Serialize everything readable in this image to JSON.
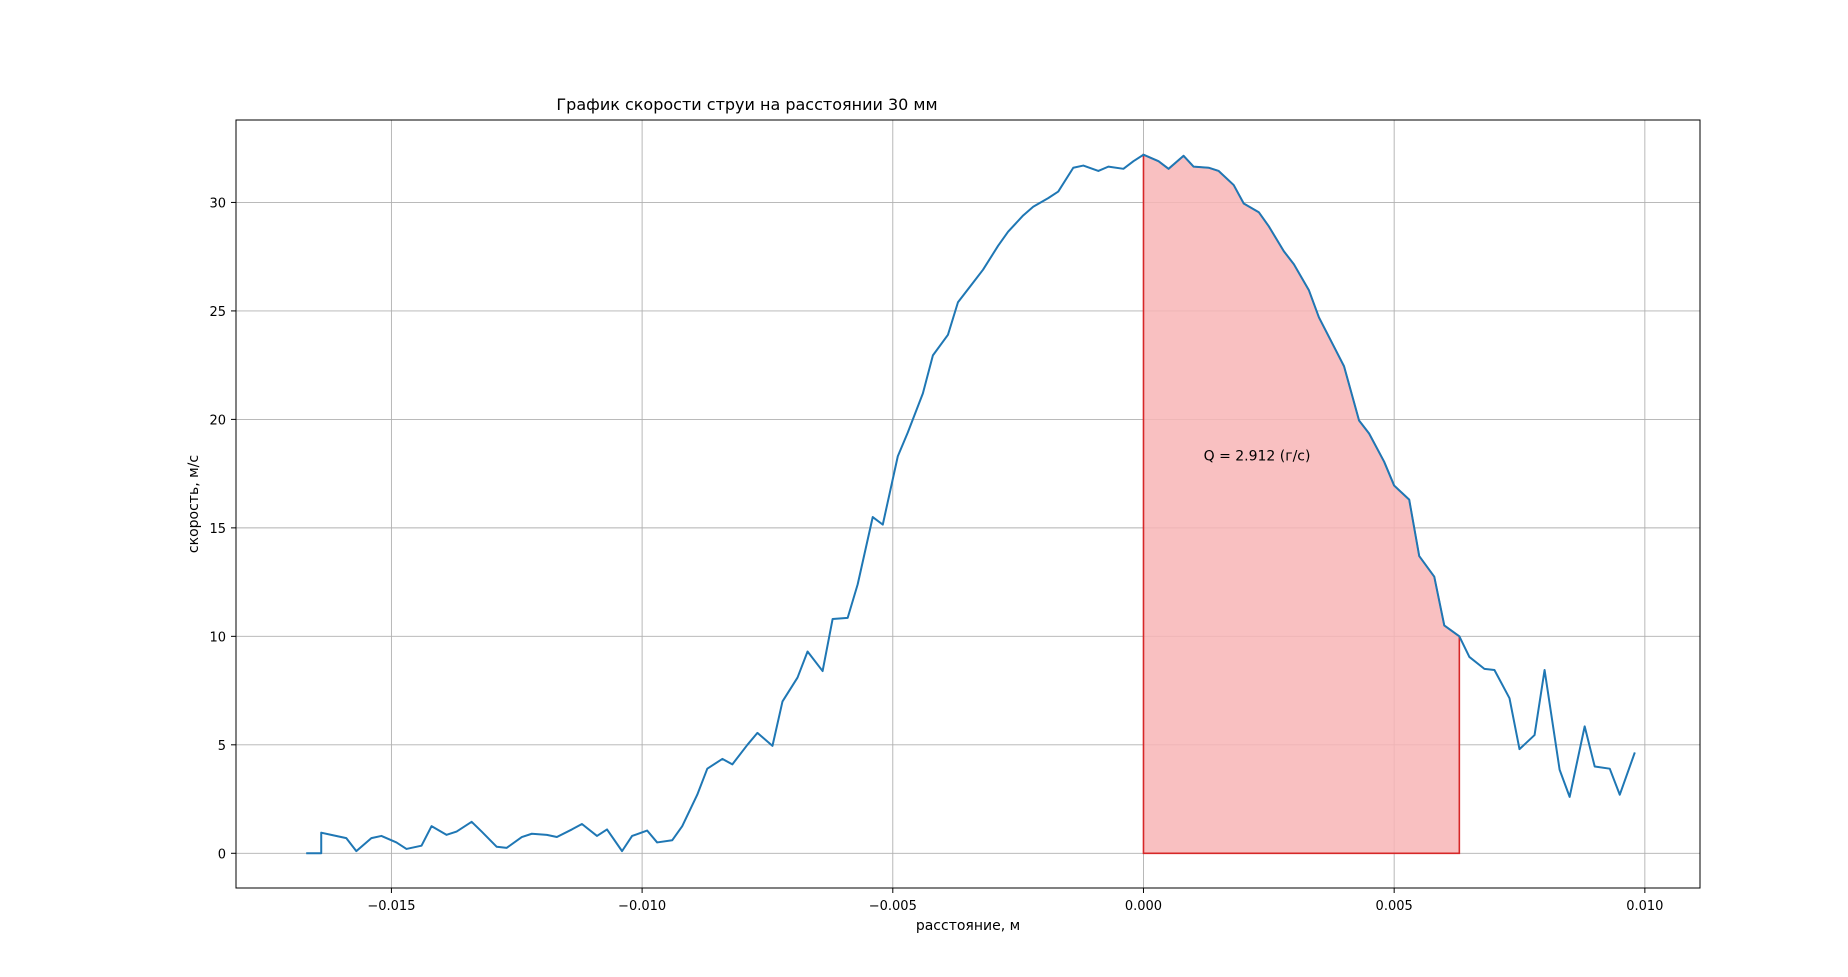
{
  "chart_data": {
    "type": "line",
    "title": "График скорости струи на расстоянии 30 мм",
    "xlabel": "расстояние, м",
    "ylabel": "скорость, м/с",
    "xlim": [
      -0.0181,
      0.0111
    ],
    "ylim": [
      -1.6,
      33.8
    ],
    "xticks": [
      -0.015,
      -0.01,
      -0.005,
      0.0,
      0.005,
      0.01
    ],
    "xtick_labels": [
      "−0.015",
      "−0.010",
      "−0.005",
      "0.000",
      "0.005",
      "0.010"
    ],
    "yticks": [
      0,
      5,
      10,
      15,
      20,
      25,
      30
    ],
    "ytick_labels": [
      "0",
      "5",
      "10",
      "15",
      "20",
      "25",
      "30"
    ],
    "grid": true,
    "series": [
      {
        "color": "#1f77b4",
        "x": [
          -0.0167,
          -0.0164,
          -0.0164,
          -0.0162,
          -0.0159,
          -0.0157,
          -0.0154,
          -0.0152,
          -0.0149,
          -0.0147,
          -0.0144,
          -0.0142,
          -0.0139,
          -0.0137,
          -0.0134,
          -0.0132,
          -0.0129,
          -0.0127,
          -0.0124,
          -0.0122,
          -0.0119,
          -0.0117,
          -0.0114,
          -0.0112,
          -0.0109,
          -0.0107,
          -0.0104,
          -0.0102,
          -0.0099,
          -0.0097,
          -0.0094,
          -0.0092,
          -0.0089,
          -0.0087,
          -0.0084,
          -0.0082,
          -0.0079,
          -0.0077,
          -0.0074,
          -0.0072,
          -0.0069,
          -0.0067,
          -0.0064,
          -0.0062,
          -0.0059,
          -0.0057,
          -0.0054,
          -0.0052,
          -0.0049,
          -0.0047,
          -0.0044,
          -0.0042,
          -0.0039,
          -0.0037,
          -0.0034,
          -0.0032,
          -0.0029,
          -0.0027,
          -0.0024,
          -0.0022,
          -0.0019,
          -0.0017,
          -0.0014,
          -0.0012,
          -0.0009,
          -0.0007,
          -0.0004,
          -0.0002,
          0.0,
          0.0003,
          0.0005,
          0.0008,
          0.001,
          0.0013,
          0.0015,
          0.0018,
          0.002,
          0.0023,
          0.0025,
          0.0028,
          0.003,
          0.0033,
          0.0035,
          0.0038,
          0.004,
          0.0043,
          0.0045,
          0.0048,
          0.005,
          0.0053,
          0.0055,
          0.0058,
          0.006,
          0.0063,
          0.0065,
          0.0068,
          0.007,
          0.0073,
          0.0075,
          0.0078,
          0.008,
          0.0083,
          0.0085,
          0.0088,
          0.009,
          0.0093,
          0.0095,
          0.0098
        ],
        "y": [
          0.0,
          0.0,
          0.95,
          0.85,
          0.7,
          0.1,
          0.7,
          0.8,
          0.5,
          0.2,
          0.35,
          1.25,
          0.85,
          1.0,
          1.45,
          1.0,
          0.3,
          0.25,
          0.75,
          0.9,
          0.85,
          0.75,
          1.1,
          1.35,
          0.8,
          1.1,
          0.1,
          0.8,
          1.05,
          0.5,
          0.6,
          1.25,
          2.7,
          3.9,
          4.35,
          4.1,
          5.0,
          5.55,
          4.95,
          7.0,
          8.1,
          9.3,
          8.4,
          10.8,
          10.85,
          12.4,
          15.5,
          15.15,
          18.3,
          19.4,
          21.2,
          22.95,
          23.9,
          25.4,
          26.3,
          26.9,
          28.0,
          28.65,
          29.4,
          29.8,
          30.2,
          30.5,
          31.6,
          31.7,
          31.45,
          31.65,
          31.55,
          31.9,
          32.2,
          31.9,
          31.55,
          32.15,
          31.65,
          31.6,
          31.45,
          30.8,
          29.95,
          29.55,
          28.9,
          27.75,
          27.15,
          25.95,
          24.7,
          23.35,
          22.45,
          19.95,
          19.35,
          18.05,
          16.95,
          16.3,
          13.7,
          12.75,
          10.5,
          10.0,
          9.05,
          8.5,
          8.45,
          7.15,
          4.8,
          5.45,
          8.45,
          3.85,
          2.6,
          5.85,
          4.0,
          3.9,
          2.7,
          4.65
        ]
      }
    ],
    "shaded_region": {
      "x_start": 0.0,
      "x_end": 0.0063,
      "fill_color": "#f8b5b6",
      "edge_color": "#d62728"
    },
    "annotation": {
      "text": "Q = 2.912 (г/с)",
      "x": 0.0012,
      "y": 18.1
    }
  }
}
